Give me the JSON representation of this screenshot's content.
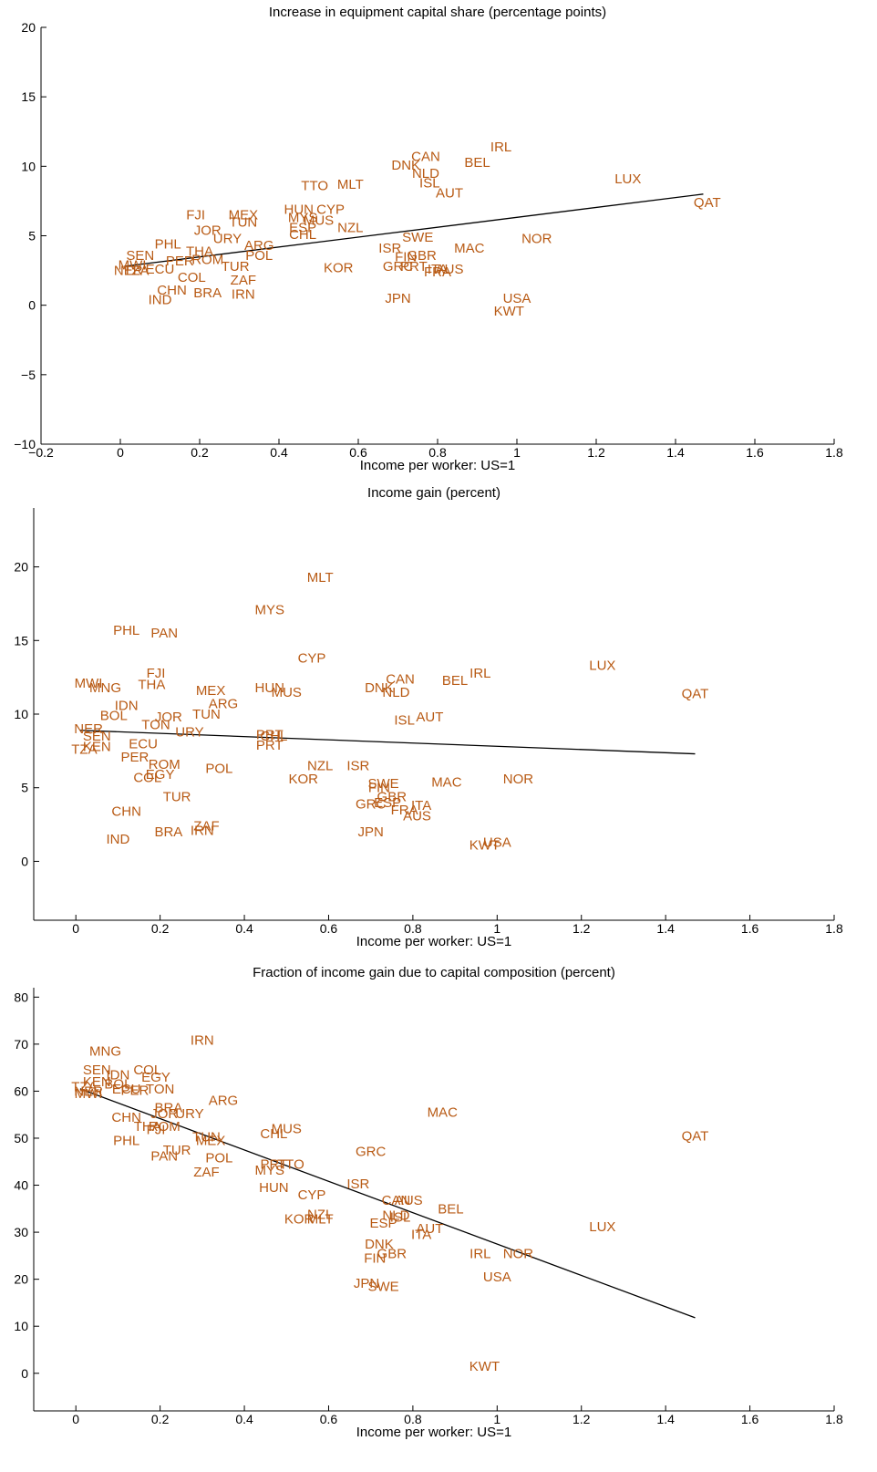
{
  "colors": {
    "label": "#b85a14",
    "axis": "#000000",
    "fit": "#000000"
  },
  "chart_data": [
    {
      "type": "scatter",
      "title": "Increase in equipment capital share (percentage points)",
      "xlabel": "Income per worker: US=1",
      "ylabel": "",
      "xlim": [
        -0.2,
        1.8
      ],
      "ylim": [
        -10,
        20
      ],
      "xticks": [
        -0.2,
        0,
        0.2,
        0.4,
        0.6,
        0.8,
        1,
        1.2,
        1.4,
        1.6,
        1.8
      ],
      "xtick_labels": [
        "−0.2",
        "0",
        "0.2",
        "0.4",
        "0.6",
        "0.8",
        "1",
        "1.2",
        "1.4",
        "1.6",
        "1.8"
      ],
      "yticks": [
        -10,
        -5,
        0,
        5,
        10,
        15,
        20
      ],
      "ytick_labels": [
        "−10",
        "−5",
        "0",
        "5",
        "10",
        "15",
        "20"
      ],
      "fit_line": [
        [
          0.01,
          2.8
        ],
        [
          1.47,
          8.0
        ]
      ],
      "points": [
        {
          "label": "IRL",
          "x": 0.96,
          "y": 11.4
        },
        {
          "label": "CAN",
          "x": 0.77,
          "y": 10.7
        },
        {
          "label": "BEL",
          "x": 0.9,
          "y": 10.3
        },
        {
          "label": "DNK",
          "x": 0.72,
          "y": 10.1
        },
        {
          "label": "NLD",
          "x": 0.77,
          "y": 9.5
        },
        {
          "label": "LUX",
          "x": 1.28,
          "y": 9.1
        },
        {
          "label": "ISL",
          "x": 0.78,
          "y": 8.8
        },
        {
          "label": "AUT",
          "x": 0.83,
          "y": 8.1
        },
        {
          "label": "TTO",
          "x": 0.49,
          "y": 8.6
        },
        {
          "label": "MLT",
          "x": 0.58,
          "y": 8.7
        },
        {
          "label": "QAT",
          "x": 1.48,
          "y": 7.4
        },
        {
          "label": "HUN",
          "x": 0.45,
          "y": 6.9
        },
        {
          "label": "CYP",
          "x": 0.53,
          "y": 6.9
        },
        {
          "label": "FJI",
          "x": 0.19,
          "y": 6.5
        },
        {
          "label": "MEX",
          "x": 0.31,
          "y": 6.5
        },
        {
          "label": "TUN",
          "x": 0.31,
          "y": 6.0
        },
        {
          "label": "MYS",
          "x": 0.46,
          "y": 6.3
        },
        {
          "label": "MUS",
          "x": 0.5,
          "y": 6.1
        },
        {
          "label": "NZL",
          "x": 0.58,
          "y": 5.6
        },
        {
          "label": "ESP",
          "x": 0.46,
          "y": 5.6
        },
        {
          "label": "CHL",
          "x": 0.46,
          "y": 5.1
        },
        {
          "label": "JOR",
          "x": 0.22,
          "y": 5.4
        },
        {
          "label": "URY",
          "x": 0.27,
          "y": 4.8
        },
        {
          "label": "ARG",
          "x": 0.35,
          "y": 4.3
        },
        {
          "label": "SWE",
          "x": 0.75,
          "y": 4.9
        },
        {
          "label": "NOR",
          "x": 1.05,
          "y": 4.8
        },
        {
          "label": "MAC",
          "x": 0.88,
          "y": 4.1
        },
        {
          "label": "ISR",
          "x": 0.68,
          "y": 4.1
        },
        {
          "label": "FIN",
          "x": 0.72,
          "y": 3.5
        },
        {
          "label": "GBR",
          "x": 0.76,
          "y": 3.6
        },
        {
          "label": "PHL",
          "x": 0.12,
          "y": 4.4
        },
        {
          "label": "THA",
          "x": 0.2,
          "y": 3.9
        },
        {
          "label": "POL",
          "x": 0.35,
          "y": 3.6
        },
        {
          "label": "SEN",
          "x": 0.05,
          "y": 3.6
        },
        {
          "label": "ROM",
          "x": 0.22,
          "y": 3.3
        },
        {
          "label": "PER",
          "x": 0.15,
          "y": 3.2
        },
        {
          "label": "MWI",
          "x": 0.03,
          "y": 2.9
        },
        {
          "label": "NER",
          "x": 0.02,
          "y": 2.5
        },
        {
          "label": "TZA",
          "x": 0.04,
          "y": 2.5
        },
        {
          "label": "ECU",
          "x": 0.1,
          "y": 2.6
        },
        {
          "label": "TUR",
          "x": 0.29,
          "y": 2.8
        },
        {
          "label": "KOR",
          "x": 0.55,
          "y": 2.7
        },
        {
          "label": "GRC",
          "x": 0.7,
          "y": 2.8
        },
        {
          "label": "PRT",
          "x": 0.74,
          "y": 2.8
        },
        {
          "label": "ITA",
          "x": 0.8,
          "y": 2.6
        },
        {
          "label": "AUS",
          "x": 0.83,
          "y": 2.6
        },
        {
          "label": "FRA",
          "x": 0.8,
          "y": 2.4
        },
        {
          "label": "COL",
          "x": 0.18,
          "y": 2.0
        },
        {
          "label": "ZAF",
          "x": 0.31,
          "y": 1.8
        },
        {
          "label": "CHN",
          "x": 0.13,
          "y": 1.1
        },
        {
          "label": "BRA",
          "x": 0.22,
          "y": 0.9
        },
        {
          "label": "IRN",
          "x": 0.31,
          "y": 0.8
        },
        {
          "label": "IND",
          "x": 0.1,
          "y": 0.4
        },
        {
          "label": "JPN",
          "x": 0.7,
          "y": 0.5
        },
        {
          "label": "USA",
          "x": 1.0,
          "y": 0.5
        },
        {
          "label": "KWT",
          "x": 0.98,
          "y": -0.4
        }
      ]
    },
    {
      "type": "scatter",
      "title": "Income gain (percent)",
      "xlabel": "Income per worker: US=1",
      "ylabel": "",
      "xlim": [
        -0.1,
        1.8
      ],
      "ylim": [
        -4,
        24
      ],
      "xticks": [
        0,
        0.2,
        0.4,
        0.6,
        0.8,
        1,
        1.2,
        1.4,
        1.6,
        1.8
      ],
      "xtick_labels": [
        "0",
        "0.2",
        "0.4",
        "0.6",
        "0.8",
        "1",
        "1.2",
        "1.4",
        "1.6",
        "1.8"
      ],
      "yticks": [
        0,
        5,
        10,
        15,
        20
      ],
      "ytick_labels": [
        "0",
        "5",
        "10",
        "15",
        "20"
      ],
      "fit_line": [
        [
          0.01,
          8.9
        ],
        [
          1.47,
          7.3
        ]
      ],
      "points": [
        {
          "label": "MLT",
          "x": 0.58,
          "y": 19.3
        },
        {
          "label": "MYS",
          "x": 0.46,
          "y": 17.1
        },
        {
          "label": "PHL",
          "x": 0.12,
          "y": 15.7
        },
        {
          "label": "PAN",
          "x": 0.21,
          "y": 15.5
        },
        {
          "label": "CYP",
          "x": 0.56,
          "y": 13.8
        },
        {
          "label": "LUX",
          "x": 1.25,
          "y": 13.3
        },
        {
          "label": "FJI",
          "x": 0.19,
          "y": 12.8
        },
        {
          "label": "IRL",
          "x": 0.96,
          "y": 12.8
        },
        {
          "label": "CAN",
          "x": 0.77,
          "y": 12.4
        },
        {
          "label": "BEL",
          "x": 0.9,
          "y": 12.3
        },
        {
          "label": "MWI",
          "x": 0.03,
          "y": 12.1
        },
        {
          "label": "THA",
          "x": 0.18,
          "y": 12.0
        },
        {
          "label": "MNG",
          "x": 0.07,
          "y": 11.8
        },
        {
          "label": "MEX",
          "x": 0.32,
          "y": 11.6
        },
        {
          "label": "HUN",
          "x": 0.46,
          "y": 11.8
        },
        {
          "label": "MUS",
          "x": 0.5,
          "y": 11.5
        },
        {
          "label": "DNK",
          "x": 0.72,
          "y": 11.8
        },
        {
          "label": "NLD",
          "x": 0.76,
          "y": 11.5
        },
        {
          "label": "QAT",
          "x": 1.47,
          "y": 11.4
        },
        {
          "label": "ARG",
          "x": 0.35,
          "y": 10.7
        },
        {
          "label": "IDN",
          "x": 0.12,
          "y": 10.6
        },
        {
          "label": "BOL",
          "x": 0.09,
          "y": 9.9
        },
        {
          "label": "JOR",
          "x": 0.22,
          "y": 9.8
        },
        {
          "label": "TUN",
          "x": 0.31,
          "y": 10.0
        },
        {
          "label": "ISL",
          "x": 0.78,
          "y": 9.6
        },
        {
          "label": "AUT",
          "x": 0.84,
          "y": 9.8
        },
        {
          "label": "TON",
          "x": 0.19,
          "y": 9.3
        },
        {
          "label": "NER",
          "x": 0.03,
          "y": 9.0
        },
        {
          "label": "URY",
          "x": 0.27,
          "y": 8.8
        },
        {
          "label": "PRT",
          "x": 0.46,
          "y": 8.6
        },
        {
          "label": "CHL",
          "x": 0.47,
          "y": 8.5
        },
        {
          "label": "SEN",
          "x": 0.05,
          "y": 8.5
        },
        {
          "label": "ECU",
          "x": 0.16,
          "y": 8.0
        },
        {
          "label": "PRT",
          "x": 0.46,
          "y": 7.9
        },
        {
          "label": "TZA",
          "x": 0.02,
          "y": 7.6
        },
        {
          "label": "KEN",
          "x": 0.05,
          "y": 7.8
        },
        {
          "label": "PER",
          "x": 0.14,
          "y": 7.1
        },
        {
          "label": "ROM",
          "x": 0.21,
          "y": 6.6
        },
        {
          "label": "POL",
          "x": 0.34,
          "y": 6.3
        },
        {
          "label": "NZL",
          "x": 0.58,
          "y": 6.5
        },
        {
          "label": "ISR",
          "x": 0.67,
          "y": 6.5
        },
        {
          "label": "EGY",
          "x": 0.2,
          "y": 5.9
        },
        {
          "label": "COL",
          "x": 0.17,
          "y": 5.7
        },
        {
          "label": "KOR",
          "x": 0.54,
          "y": 5.6
        },
        {
          "label": "SWE",
          "x": 0.73,
          "y": 5.3
        },
        {
          "label": "MAC",
          "x": 0.88,
          "y": 5.4
        },
        {
          "label": "NOR",
          "x": 1.05,
          "y": 5.6
        },
        {
          "label": "FIN",
          "x": 0.72,
          "y": 5.0
        },
        {
          "label": "TUR",
          "x": 0.24,
          "y": 4.4
        },
        {
          "label": "GBR",
          "x": 0.75,
          "y": 4.4
        },
        {
          "label": "ITA",
          "x": 0.82,
          "y": 3.8
        },
        {
          "label": "GRC",
          "x": 0.7,
          "y": 3.9
        },
        {
          "label": "ESP",
          "x": 0.74,
          "y": 4.0
        },
        {
          "label": "FRA",
          "x": 0.78,
          "y": 3.5
        },
        {
          "label": "AUS",
          "x": 0.81,
          "y": 3.1
        },
        {
          "label": "CHN",
          "x": 0.12,
          "y": 3.4
        },
        {
          "label": "ZAF",
          "x": 0.31,
          "y": 2.4
        },
        {
          "label": "BRA",
          "x": 0.22,
          "y": 2.0
        },
        {
          "label": "IRN",
          "x": 0.3,
          "y": 2.1
        },
        {
          "label": "JPN",
          "x": 0.7,
          "y": 2.0
        },
        {
          "label": "IND",
          "x": 0.1,
          "y": 1.5
        },
        {
          "label": "USA",
          "x": 1.0,
          "y": 1.3
        },
        {
          "label": "KWT",
          "x": 0.97,
          "y": 1.1
        }
      ]
    },
    {
      "type": "scatter",
      "title": "Fraction of income gain due to capital composition (percent)",
      "xlabel": "Income per worker: US=1",
      "ylabel": "",
      "xlim": [
        -0.1,
        1.8
      ],
      "ylim": [
        -8,
        82
      ],
      "xticks": [
        0,
        0.2,
        0.4,
        0.6,
        0.8,
        1,
        1.2,
        1.4,
        1.6,
        1.8
      ],
      "xtick_labels": [
        "0",
        "0.2",
        "0.4",
        "0.6",
        "0.8",
        "1",
        "1.2",
        "1.4",
        "1.6",
        "1.8"
      ],
      "yticks": [
        0,
        10,
        20,
        30,
        40,
        50,
        60,
        70,
        80
      ],
      "ytick_labels": [
        "0",
        "10",
        "20",
        "30",
        "40",
        "50",
        "60",
        "70",
        "80"
      ],
      "fit_line": [
        [
          0.01,
          60.5
        ],
        [
          1.47,
          11.8
        ]
      ],
      "points": [
        {
          "label": "IRN",
          "x": 0.3,
          "y": 70.8
        },
        {
          "label": "MNG",
          "x": 0.07,
          "y": 68.5
        },
        {
          "label": "SEN",
          "x": 0.05,
          "y": 64.5
        },
        {
          "label": "COL",
          "x": 0.17,
          "y": 64.5
        },
        {
          "label": "EGY",
          "x": 0.19,
          "y": 63.0
        },
        {
          "label": "IDN",
          "x": 0.1,
          "y": 63.5
        },
        {
          "label": "KEN",
          "x": 0.05,
          "y": 62.0
        },
        {
          "label": "BOL",
          "x": 0.1,
          "y": 61.5
        },
        {
          "label": "TZA",
          "x": 0.02,
          "y": 61.0
        },
        {
          "label": "NER",
          "x": 0.03,
          "y": 60.0
        },
        {
          "label": "MWI",
          "x": 0.03,
          "y": 59.5
        },
        {
          "label": "ECU",
          "x": 0.12,
          "y": 60.5
        },
        {
          "label": "TON",
          "x": 0.2,
          "y": 60.5
        },
        {
          "label": "PER",
          "x": 0.14,
          "y": 60.2
        },
        {
          "label": "ARG",
          "x": 0.35,
          "y": 58.0
        },
        {
          "label": "BRA",
          "x": 0.22,
          "y": 56.5
        },
        {
          "label": "URY",
          "x": 0.27,
          "y": 55.2
        },
        {
          "label": "JOR",
          "x": 0.21,
          "y": 55.2
        },
        {
          "label": "MAC",
          "x": 0.87,
          "y": 55.5
        },
        {
          "label": "CHN",
          "x": 0.12,
          "y": 54.5
        },
        {
          "label": "THA",
          "x": 0.17,
          "y": 52.5
        },
        {
          "label": "ROM",
          "x": 0.21,
          "y": 52.5
        },
        {
          "label": "FJI",
          "x": 0.19,
          "y": 51.8
        },
        {
          "label": "MUS",
          "x": 0.5,
          "y": 52.0
        },
        {
          "label": "CHL",
          "x": 0.47,
          "y": 51.0
        },
        {
          "label": "TUN",
          "x": 0.31,
          "y": 50.3
        },
        {
          "label": "MEX",
          "x": 0.32,
          "y": 49.5
        },
        {
          "label": "QAT",
          "x": 1.47,
          "y": 50.5
        },
        {
          "label": "PHL",
          "x": 0.12,
          "y": 49.5
        },
        {
          "label": "GRC",
          "x": 0.7,
          "y": 47.2
        },
        {
          "label": "TUR",
          "x": 0.24,
          "y": 47.5
        },
        {
          "label": "PAN",
          "x": 0.21,
          "y": 46.2
        },
        {
          "label": "POL",
          "x": 0.34,
          "y": 45.8
        },
        {
          "label": "PRT",
          "x": 0.47,
          "y": 44.5
        },
        {
          "label": "TTO",
          "x": 0.51,
          "y": 44.5
        },
        {
          "label": "MYS",
          "x": 0.46,
          "y": 43.2
        },
        {
          "label": "ZAF",
          "x": 0.31,
          "y": 42.8
        },
        {
          "label": "ISR",
          "x": 0.67,
          "y": 40.3
        },
        {
          "label": "HUN",
          "x": 0.47,
          "y": 39.5
        },
        {
          "label": "CYP",
          "x": 0.56,
          "y": 38.0
        },
        {
          "label": "CAN",
          "x": 0.76,
          "y": 36.8
        },
        {
          "label": "AUS",
          "x": 0.79,
          "y": 36.8
        },
        {
          "label": "BEL",
          "x": 0.89,
          "y": 35.0
        },
        {
          "label": "LUX",
          "x": 1.25,
          "y": 31.2
        },
        {
          "label": "NZL",
          "x": 0.58,
          "y": 33.8
        },
        {
          "label": "NLD",
          "x": 0.76,
          "y": 33.6
        },
        {
          "label": "ISL",
          "x": 0.77,
          "y": 33.2
        },
        {
          "label": "KOR",
          "x": 0.53,
          "y": 32.8
        },
        {
          "label": "MLT",
          "x": 0.58,
          "y": 32.8
        },
        {
          "label": "ESP",
          "x": 0.73,
          "y": 32.0
        },
        {
          "label": "AUT",
          "x": 0.84,
          "y": 30.8
        },
        {
          "label": "ITA",
          "x": 0.82,
          "y": 29.5
        },
        {
          "label": "DNK",
          "x": 0.72,
          "y": 27.5
        },
        {
          "label": "GBR",
          "x": 0.75,
          "y": 25.5
        },
        {
          "label": "IRL",
          "x": 0.96,
          "y": 25.5
        },
        {
          "label": "NOR",
          "x": 1.05,
          "y": 25.5
        },
        {
          "label": "FIN",
          "x": 0.71,
          "y": 24.5
        },
        {
          "label": "USA",
          "x": 1.0,
          "y": 20.5
        },
        {
          "label": "JPN",
          "x": 0.69,
          "y": 19.2
        },
        {
          "label": "SWE",
          "x": 0.73,
          "y": 18.5
        },
        {
          "label": "KWT",
          "x": 0.97,
          "y": 1.5
        }
      ]
    }
  ]
}
